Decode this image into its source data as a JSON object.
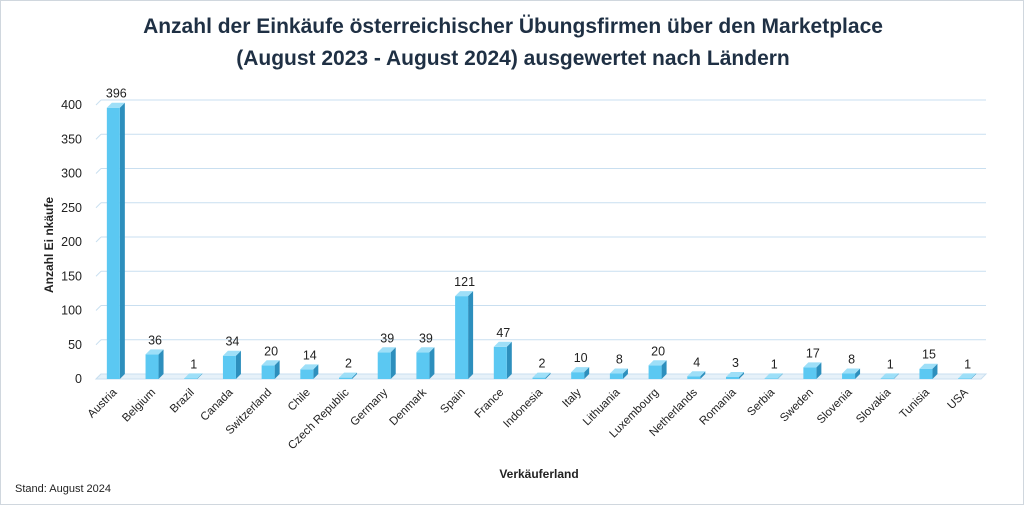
{
  "chart_data": {
    "type": "bar",
    "title_lines": [
      "Anzahl der Einkäufe österreichischer Übungsfirmen über den Marketplace",
      "(August  2023 - August 2024) ausgewertet nach Ländern"
    ],
    "xlabel": "Verkäuferland",
    "ylabel": "Anzahl Ei nkäufe",
    "ylim": [
      0,
      400
    ],
    "yticks": [
      0,
      50,
      100,
      150,
      200,
      250,
      300,
      350,
      400
    ],
    "grid": true,
    "bar_color": "#5bc8f2",
    "bar_side_color": "#2d8fbd",
    "bar_top_color": "#9edff8",
    "categories": [
      "Austria",
      "Belgium",
      "Brazil",
      "Canada",
      "Switzerland",
      "Chile",
      "Czech Republic",
      "Germany",
      "Denmark",
      "Spain",
      "France",
      "Indonesia",
      "Italy",
      "Lithuania",
      "Luxembourg",
      "Netherlands",
      "Romania",
      "Serbia",
      "Sweden",
      "Slovenia",
      "Slovakia",
      "Tunisia",
      "USA"
    ],
    "values": [
      396,
      36,
      1,
      34,
      20,
      14,
      2,
      39,
      39,
      121,
      47,
      2,
      10,
      8,
      20,
      4,
      3,
      1,
      17,
      8,
      1,
      15,
      1
    ]
  },
  "footer_note": "Stand: August 2024"
}
